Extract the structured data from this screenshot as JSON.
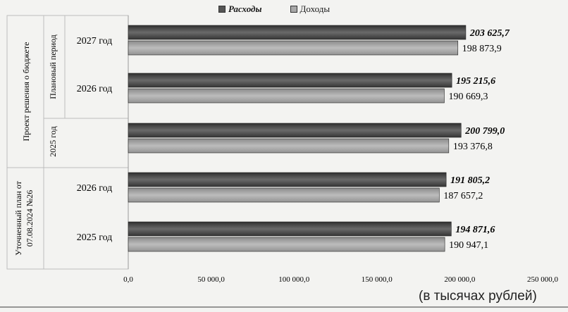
{
  "chart_data": {
    "type": "bar",
    "orientation": "horizontal",
    "series": [
      {
        "name": "Расходы",
        "color": "#555555",
        "values": [
          203625.7,
          195215.6,
          200799.0,
          191805.2,
          194871.6
        ],
        "labels": [
          "203 625,7",
          "195 215,6",
          "200 799,0",
          "191 805,2",
          "194 871,6"
        ]
      },
      {
        "name": "Доходы",
        "color": "#a8a8a8",
        "values": [
          198873.9,
          190669.3,
          193376.8,
          187657.2,
          190947.1
        ],
        "labels": [
          "198 873,9",
          "190 669,3",
          "193 376,8",
          "187 657,2",
          "190 947,1"
        ]
      }
    ],
    "categories": [
      "2027 год",
      "2026 год",
      "2025 год",
      "2026 год",
      "2025 год"
    ],
    "groups": [
      {
        "label": "Проект решения о бюджете",
        "sublabel": "Плановый период"
      },
      {
        "label": "Уточненный план от 07.08.2024 №26"
      }
    ],
    "xlim": [
      0,
      250000
    ],
    "x_ticks": [
      "0,0",
      "50 000,0",
      "100 000,0",
      "150 000,0",
      "200 000,0",
      "250 000,0"
    ],
    "legend_position": "top",
    "grid": false
  },
  "unit_note": "(в тысячах рублей)"
}
